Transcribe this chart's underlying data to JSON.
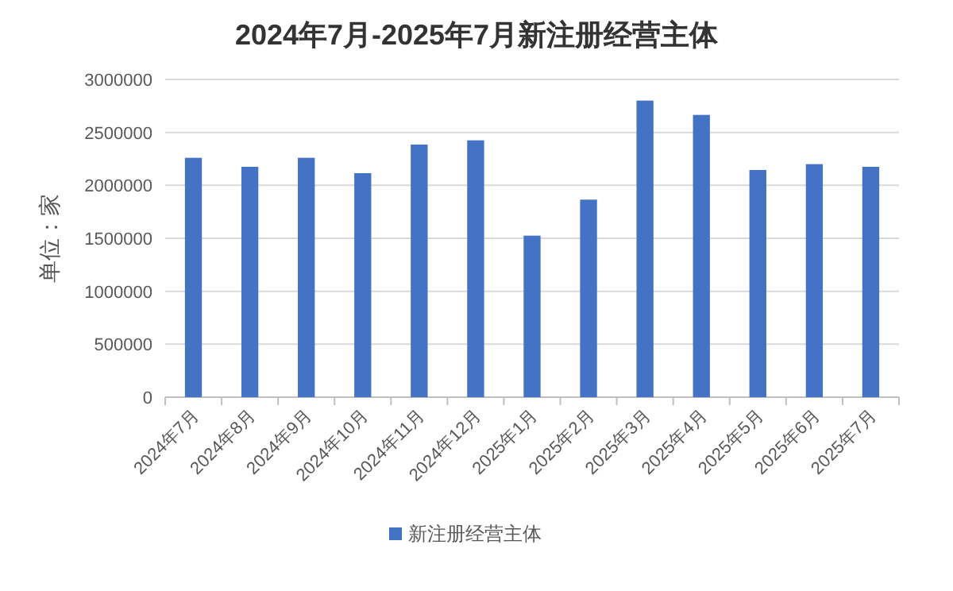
{
  "chart_data": {
    "type": "bar",
    "title": "2024年7月-2025年7月新注册经营主体",
    "ylabel": "单位：家",
    "categories": [
      "2024年7月",
      "2024年8月",
      "2024年9月",
      "2024年10月",
      "2024年11月",
      "2024年12月",
      "2025年1月",
      "2025年2月",
      "2025年3月",
      "2025年4月",
      "2025年5月",
      "2025年6月",
      "2025年7月"
    ],
    "series": [
      {
        "name": "新注册经营主体",
        "color": "#4472c4",
        "values": [
          2260000,
          2175000,
          2260000,
          2115000,
          2385000,
          2425000,
          1525000,
          1865000,
          2800000,
          2665000,
          2145000,
          2200000,
          2175000
        ]
      }
    ],
    "ylim": [
      0,
      3000000
    ],
    "yticks": [
      0,
      500000,
      1000000,
      1500000,
      2000000,
      2500000,
      3000000
    ],
    "grid": "y",
    "legend": "bottom"
  }
}
